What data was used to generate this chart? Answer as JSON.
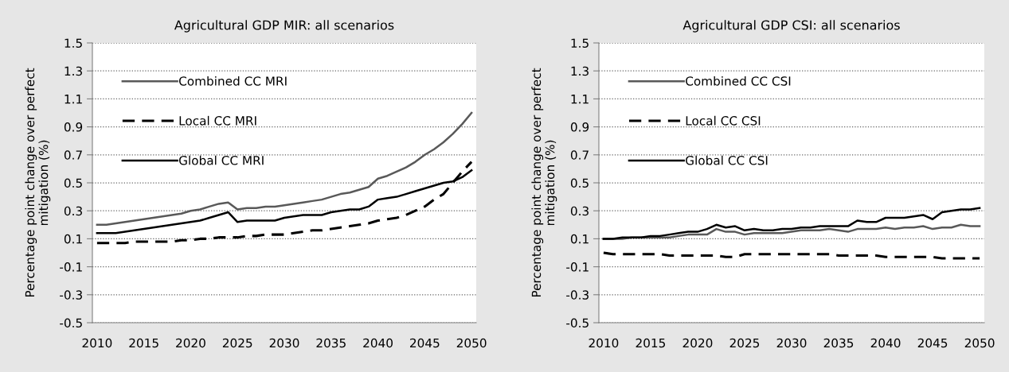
{
  "chart_data": [
    {
      "type": "line",
      "title": "Agricultural GDP MIR: all scenarios",
      "ylabel": "Percentage point change over perfect\nmitigation (%)",
      "x": [
        2010,
        2011,
        2012,
        2013,
        2014,
        2015,
        2016,
        2017,
        2018,
        2019,
        2020,
        2021,
        2022,
        2023,
        2024,
        2025,
        2026,
        2027,
        2028,
        2029,
        2030,
        2031,
        2032,
        2033,
        2034,
        2035,
        2036,
        2037,
        2038,
        2039,
        2040,
        2041,
        2042,
        2043,
        2044,
        2045,
        2046,
        2047,
        2048,
        2049,
        2050
      ],
      "series": [
        {
          "name": "Combined CC MRI",
          "color": "#595959",
          "line_style": "solid",
          "values": [
            0.2,
            0.2,
            0.21,
            0.22,
            0.23,
            0.24,
            0.25,
            0.26,
            0.27,
            0.28,
            0.3,
            0.31,
            0.33,
            0.35,
            0.36,
            0.31,
            0.32,
            0.32,
            0.33,
            0.33,
            0.34,
            0.35,
            0.36,
            0.37,
            0.38,
            0.4,
            0.42,
            0.43,
            0.45,
            0.47,
            0.53,
            0.55,
            0.58,
            0.61,
            0.65,
            0.7,
            0.74,
            0.79,
            0.85,
            0.92,
            1.0
          ]
        },
        {
          "name": "Local CC MRI",
          "color": "#000000",
          "line_style": "dashed",
          "values": [
            0.07,
            0.07,
            0.07,
            0.07,
            0.08,
            0.08,
            0.08,
            0.08,
            0.08,
            0.09,
            0.09,
            0.1,
            0.1,
            0.11,
            0.11,
            0.11,
            0.12,
            0.12,
            0.13,
            0.13,
            0.13,
            0.14,
            0.15,
            0.16,
            0.16,
            0.17,
            0.18,
            0.19,
            0.2,
            0.21,
            0.23,
            0.24,
            0.25,
            0.27,
            0.3,
            0.33,
            0.38,
            0.42,
            0.5,
            0.58,
            0.65
          ]
        },
        {
          "name": "Global CC MRI",
          "color": "#000000",
          "line_style": "solid",
          "values": [
            0.14,
            0.14,
            0.14,
            0.15,
            0.16,
            0.17,
            0.18,
            0.19,
            0.2,
            0.21,
            0.22,
            0.23,
            0.25,
            0.27,
            0.29,
            0.22,
            0.23,
            0.23,
            0.23,
            0.23,
            0.25,
            0.26,
            0.27,
            0.27,
            0.27,
            0.29,
            0.3,
            0.31,
            0.31,
            0.33,
            0.38,
            0.39,
            0.4,
            0.42,
            0.44,
            0.46,
            0.48,
            0.5,
            0.51,
            0.54,
            0.59
          ]
        }
      ],
      "xlim": [
        2009.5,
        2050.5
      ],
      "xticks": [
        2010,
        2015,
        2020,
        2025,
        2030,
        2035,
        2040,
        2045,
        2050
      ],
      "ylim": [
        -0.5,
        1.5
      ],
      "yticks": [
        {
          "value": -0.5,
          "label": "-0.5"
        },
        {
          "value": -0.3,
          "label": "-0.3"
        },
        {
          "value": -0.1,
          "label": "-0.1"
        },
        0.1,
        0.3,
        0.5,
        0.7,
        0.9,
        1.1,
        1.3,
        1.5
      ],
      "grid": "y",
      "legend": "top left"
    },
    {
      "type": "line",
      "title": "Agricultural GDP CSI: all scenarios",
      "ylabel": "Percentage point change over perfect\nmitigation (%)",
      "x": [
        2010,
        2011,
        2012,
        2013,
        2014,
        2015,
        2016,
        2017,
        2018,
        2019,
        2020,
        2021,
        2022,
        2023,
        2024,
        2025,
        2026,
        2027,
        2028,
        2029,
        2030,
        2031,
        2032,
        2033,
        2034,
        2035,
        2036,
        2037,
        2038,
        2039,
        2040,
        2041,
        2042,
        2043,
        2044,
        2045,
        2046,
        2047,
        2048,
        2049,
        2050
      ],
      "series": [
        {
          "name": "Combined CC CSI",
          "color": "#595959",
          "line_style": "solid",
          "values": [
            0.1,
            0.1,
            0.1,
            0.11,
            0.11,
            0.11,
            0.11,
            0.11,
            0.12,
            0.13,
            0.13,
            0.13,
            0.17,
            0.15,
            0.15,
            0.13,
            0.14,
            0.14,
            0.14,
            0.14,
            0.15,
            0.16,
            0.16,
            0.16,
            0.17,
            0.16,
            0.15,
            0.17,
            0.17,
            0.17,
            0.18,
            0.17,
            0.18,
            0.18,
            0.19,
            0.17,
            0.18,
            0.18,
            0.2,
            0.19,
            0.19
          ]
        },
        {
          "name": "Local CC CSI",
          "color": "#000000",
          "line_style": "dashed",
          "values": [
            0.0,
            -0.01,
            -0.01,
            -0.01,
            -0.01,
            -0.01,
            -0.01,
            -0.02,
            -0.02,
            -0.02,
            -0.02,
            -0.02,
            -0.02,
            -0.03,
            -0.03,
            -0.01,
            -0.01,
            -0.01,
            -0.01,
            -0.01,
            -0.01,
            -0.01,
            -0.01,
            -0.01,
            -0.01,
            -0.02,
            -0.02,
            -0.02,
            -0.02,
            -0.02,
            -0.03,
            -0.03,
            -0.03,
            -0.03,
            -0.03,
            -0.03,
            -0.04,
            -0.04,
            -0.04,
            -0.04,
            -0.04
          ]
        },
        {
          "name": "Global CC CSI",
          "color": "#000000",
          "line_style": "solid",
          "values": [
            0.1,
            0.1,
            0.11,
            0.11,
            0.11,
            0.12,
            0.12,
            0.13,
            0.14,
            0.15,
            0.15,
            0.17,
            0.2,
            0.18,
            0.19,
            0.16,
            0.17,
            0.16,
            0.16,
            0.17,
            0.17,
            0.18,
            0.18,
            0.19,
            0.19,
            0.19,
            0.19,
            0.23,
            0.22,
            0.22,
            0.25,
            0.25,
            0.25,
            0.26,
            0.27,
            0.24,
            0.29,
            0.3,
            0.31,
            0.31,
            0.32
          ]
        }
      ],
      "xlim": [
        2009.5,
        2050.5
      ],
      "xticks": [
        2010,
        2015,
        2020,
        2025,
        2030,
        2035,
        2040,
        2045,
        2050
      ],
      "ylim": [
        -0.5,
        1.5
      ],
      "yticks": [
        {
          "value": -0.5,
          "label": "-0.5"
        },
        {
          "value": -0.3,
          "label": "-0.3"
        },
        {
          "value": -0.1,
          "label": "-0.1"
        },
        0.1,
        0.3,
        0.5,
        0.7,
        0.9,
        1.1,
        1.3,
        1.5
      ],
      "grid": "y",
      "legend": "top left"
    }
  ]
}
